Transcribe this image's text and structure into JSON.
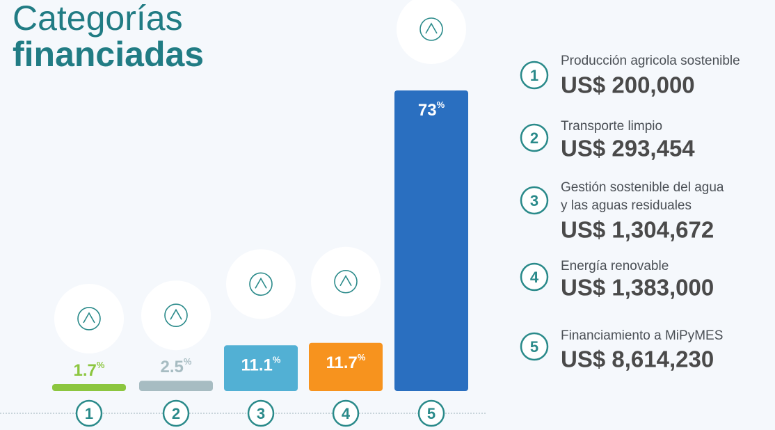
{
  "chart_data": {
    "type": "bar",
    "title": "Categorías",
    "subtitle": "financiadas",
    "categories": [
      "1",
      "2",
      "3",
      "4",
      "5"
    ],
    "values": [
      1.7,
      2.5,
      11.1,
      11.7,
      73
    ],
    "value_labels": [
      "1.7%",
      "2.5%",
      "11.1%",
      "11.7%",
      "73%"
    ],
    "colors": [
      "#8cc63f",
      "#a7bcc2",
      "#52b0d4",
      "#f7931e",
      "#2a6fc0"
    ],
    "legend_items": [
      {
        "number": "1",
        "lines": [
          "Producción agricola sostenible"
        ],
        "amount": "US$ 200,000"
      },
      {
        "number": "2",
        "lines": [
          "Transporte limpio"
        ],
        "amount": "US$ 293,454"
      },
      {
        "number": "3",
        "lines": [
          "Gestión sostenible del agua",
          "y las aguas residuales"
        ],
        "amount": "US$ 1,304,672"
      },
      {
        "number": "4",
        "lines": [
          "Energía renovable"
        ],
        "amount": "US$ 1,383,000"
      },
      {
        "number": "5",
        "lines": [
          "Financiamiento a MiPyMES"
        ],
        "amount": "US$ 8,614,230"
      }
    ]
  }
}
